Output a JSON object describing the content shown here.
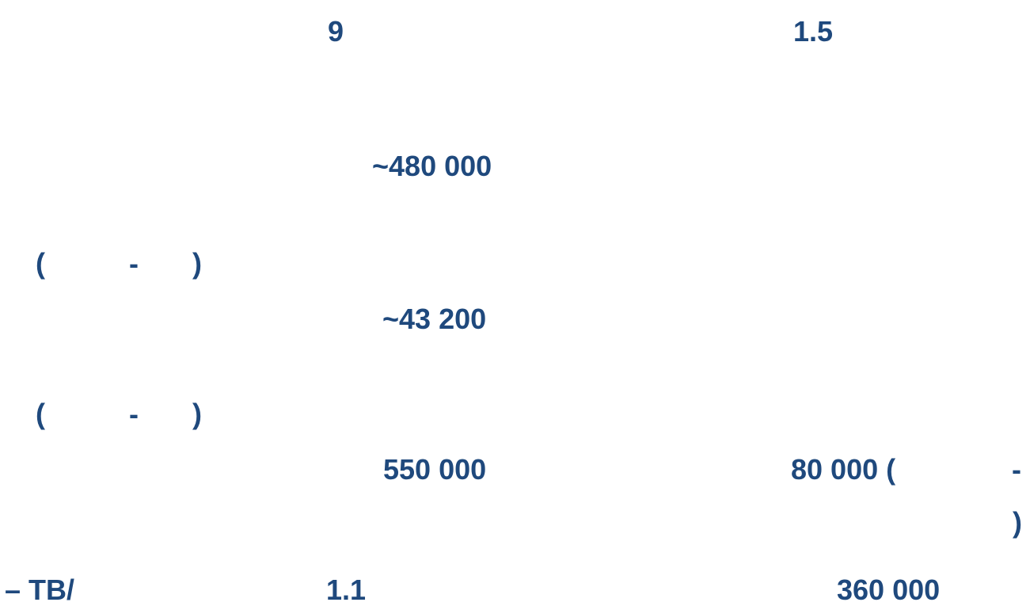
{
  "lines": [
    [
      "9",
      "1.5"
    ],
    [
      "~480 000"
    ],
    [
      "(",
      "-",
      ")"
    ],
    [
      "~43 200"
    ],
    [
      "(",
      "-",
      ")"
    ],
    [
      "550 000",
      "80 000 (",
      "-",
      ")"
    ],
    [
      "– TB/",
      "1.1",
      "360 000"
    ]
  ]
}
